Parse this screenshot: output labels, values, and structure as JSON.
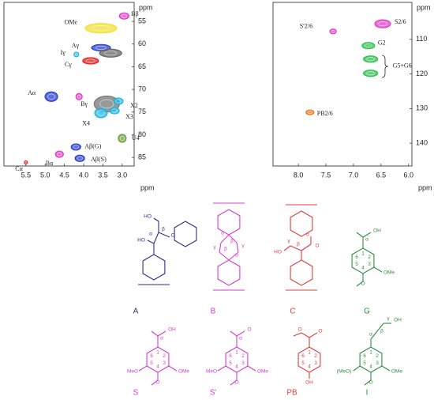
{
  "chart_data": [
    {
      "type": "scatter",
      "x_label": "ppm",
      "y_label": "ppm",
      "xlim": [
        6.07,
        2.69
      ],
      "ylim": [
        50.8,
        86.9
      ],
      "xticks": [
        5.5,
        {
          "value": 5,
          "label": "5.0"
        },
        4.5,
        {
          "value": 4,
          "label": "4.0"
        },
        3.5,
        {
          "value": 3,
          "label": "3.0"
        }
      ],
      "yticks": [
        55,
        60,
        65,
        70,
        75,
        80,
        85
      ],
      "peaks": [
        {
          "label": "OMe",
          "x": 3.55,
          "y": 56.5,
          "color": "#f0e030"
        },
        {
          "label": "Bβ",
          "x": 2.95,
          "y": 53.8,
          "color": "#e040c8"
        },
        {
          "label": "Aγ",
          "x": 3.55,
          "y": 60.8,
          "color": "#2a3fd0"
        },
        {
          "label": "Iγ",
          "x": 4.19,
          "y": 62.3,
          "color": "#20b8e0"
        },
        {
          "label": "Cγ",
          "x": 3.82,
          "y": 63.7,
          "color": "#e02020"
        },
        {
          "x": 3.3,
          "y": 62,
          "color": "#666666"
        },
        {
          "label": "Aα",
          "x": 4.84,
          "y": 71.6,
          "color": "#2a3fd0"
        },
        {
          "label": "Bγ",
          "x": 4.12,
          "y": 71.6,
          "color": "#e040c8"
        },
        {
          "x": 3.4,
          "y": 73.2,
          "color": "#777777"
        },
        {
          "label": "X2",
          "x": 3.1,
          "y": 72.6,
          "color": "#20b8e0"
        },
        {
          "label": "X3",
          "x": 3.2,
          "y": 74.7,
          "color": "#20b8e0"
        },
        {
          "label": "X4",
          "x": 3.55,
          "y": 75.2,
          "color": "#20b8e0"
        },
        {
          "label": "U4",
          "x": 3.0,
          "y": 80.8,
          "color": "#70a040"
        },
        {
          "label": "Bα",
          "x": 4.63,
          "y": 84.3,
          "color": "#e040c8"
        },
        {
          "label": "Aβ(G)",
          "x": 4.2,
          "y": 82.7,
          "color": "#2a3fd0"
        },
        {
          "label": "Aβ(S)",
          "x": 4.1,
          "y": 85.2,
          "color": "#2a3fd0"
        },
        {
          "label": "Cα",
          "x": 5.5,
          "y": 86.1,
          "color": "#e02020"
        }
      ]
    },
    {
      "type": "scatter",
      "x_label": "ppm",
      "y_label": "ppm",
      "xlim": [
        8.46,
        5.94
      ],
      "ylim": [
        99.3,
        146.6
      ],
      "xticks": [
        {
          "value": 8,
          "label": "8.0"
        },
        7.5,
        {
          "value": 7,
          "label": "7.0"
        },
        6.5,
        {
          "value": 6,
          "label": "6.0"
        }
      ],
      "yticks": [
        110,
        120,
        130,
        140
      ],
      "peaks": [
        {
          "label": "S2/6",
          "x": 6.47,
          "y": 105.5,
          "color": "#e040c8"
        },
        {
          "label": "S′2/6",
          "x": 7.37,
          "y": 107.7,
          "color": "#e040c8"
        },
        {
          "label": "G2",
          "x": 6.73,
          "y": 111.8,
          "color": "#30c050"
        },
        {
          "label": "G5+G6",
          "x": 6.69,
          "y": 115.7,
          "color": "#30c050"
        },
        {
          "x": 6.69,
          "y": 119.8,
          "color": "#30c050"
        },
        {
          "label": "PB2/6",
          "x": 7.79,
          "y": 131.1,
          "color": "#f07820"
        }
      ]
    }
  ],
  "structures": [
    {
      "name": "A",
      "color": "#2e2e8c",
      "texts": [
        "HO",
        "HO",
        "α",
        "β",
        "O"
      ]
    },
    {
      "name": "B",
      "color": "#d63ccf",
      "texts": [
        "α",
        "β",
        "γ",
        "γ",
        "β",
        "α"
      ]
    },
    {
      "name": "C",
      "color": "#e0403c",
      "texts": [
        "HO",
        "γ",
        "β",
        "α",
        "O"
      ]
    },
    {
      "name": "G",
      "color": "#2f8f3f",
      "texts": [
        "OH",
        "α",
        "1",
        "2",
        "3",
        "4",
        "5",
        "6",
        "OMe",
        "O"
      ]
    },
    {
      "name": "S",
      "color": "#d63ccf",
      "texts": [
        "OH",
        "α",
        "1",
        "2",
        "3",
        "4",
        "5",
        "6",
        "MeO",
        "OMe",
        "O"
      ]
    },
    {
      "name": "S′",
      "color": "#d63ccf",
      "texts": [
        "O",
        "α",
        "1",
        "2",
        "3",
        "4",
        "5",
        "6",
        "MeO",
        "OMe",
        "O"
      ]
    },
    {
      "name": "PB",
      "color": "#e0403c",
      "texts": [
        "O",
        "O",
        "1",
        "2",
        "3",
        "4",
        "5",
        "6",
        "OH"
      ]
    },
    {
      "name": "I",
      "color": "#2f8f3f",
      "texts": [
        "OH",
        "γ",
        "β",
        "α",
        "1",
        "2",
        "3",
        "4",
        "5",
        "6",
        "(MeO)",
        "OMe",
        "O"
      ]
    }
  ]
}
